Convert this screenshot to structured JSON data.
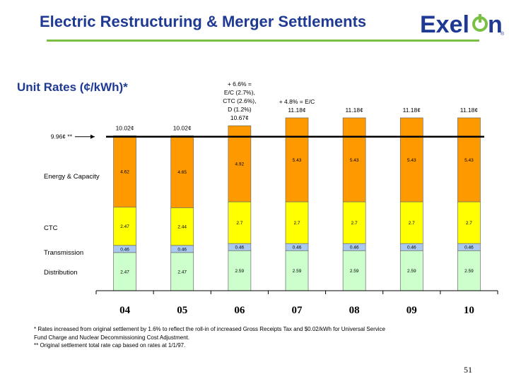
{
  "slide": {
    "title": "Electric Restructuring & Merger Settlements",
    "logo_text": "Exel",
    "logo_text_end": "n",
    "logo_mark": "®",
    "subtitle": "Unit Rates (¢/kWh)*",
    "page_number": "51",
    "footnotes": [
      "* Rates increased from original settlement by 1.6% to reflect the roll-in of increased Gross Receipts Tax and $0.02/kWh for Universal Service",
      "Fund Charge and Nuclear Decommissioning Cost Adjustment.",
      "** Original settlement total rate cap based on rates at 1/1/97."
    ]
  },
  "colors": {
    "title": "#1f3a93",
    "rule": "#7ac143",
    "energy": "#ff9900",
    "ctc": "#ffff00",
    "transmission": "#a9c9f0",
    "distribution": "#ccffcc",
    "cap_line": "#000000"
  },
  "chart_data": {
    "type": "bar",
    "stacked": true,
    "categories": [
      "04",
      "05",
      "06",
      "07",
      "08",
      "09",
      "10"
    ],
    "series": [
      {
        "name": "Distribution",
        "key": "distribution",
        "values": [
          2.47,
          2.47,
          2.59,
          2.59,
          2.59,
          2.59,
          2.59
        ],
        "labels": [
          "2.47",
          "2.47",
          "2.59",
          "2.59",
          "2.59",
          "2.59",
          "2.59"
        ]
      },
      {
        "name": "Transmission",
        "key": "transmission",
        "values": [
          0.46,
          0.46,
          0.46,
          0.46,
          0.46,
          0.46,
          0.46
        ],
        "labels": [
          "0.46",
          "0.46",
          "0.46",
          "0.46",
          "0.46",
          "0.46",
          "0.46"
        ]
      },
      {
        "name": "CTC",
        "key": "ctc",
        "values": [
          2.47,
          2.44,
          2.7,
          2.7,
          2.7,
          2.7,
          2.7
        ],
        "labels": [
          "2.47",
          "2.44",
          "2.7",
          "2.7",
          "2.7",
          "2.7",
          "2.7"
        ]
      },
      {
        "name": "Energy & Capacity",
        "key": "energy",
        "values": [
          4.62,
          4.65,
          4.92,
          5.43,
          5.43,
          5.43,
          5.43
        ],
        "labels": [
          "4.62",
          "4.65",
          "4.92",
          "5.43",
          "5.43",
          "5.43",
          "5.43"
        ]
      }
    ],
    "totals": [
      "10.02¢",
      "10.02¢",
      "10.67¢",
      "11.18¢",
      "11.18¢",
      "11.18¢",
      "11.18¢"
    ],
    "annotations": {
      "2": [
        "+ 6.6% =",
        "E/C (2.7%),",
        "CTC (2.6%),",
        "D (1.2%)"
      ],
      "3": [
        "+ 4.8% = E/C"
      ]
    },
    "reference_line": {
      "value": 9.96,
      "label": "9.96¢ **"
    },
    "ylim": [
      0,
      11.18
    ],
    "grid": false,
    "legend": "left-inline"
  }
}
